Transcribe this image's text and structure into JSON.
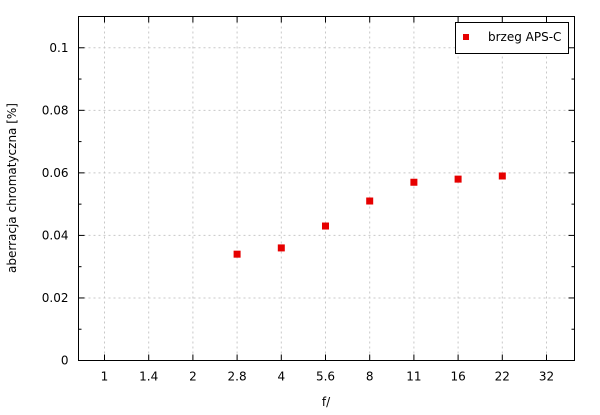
{
  "chart_data": {
    "type": "scatter",
    "title": "",
    "xlabel": "f/",
    "ylabel": "aberracja chromatyczna [%]",
    "x_scale": "categorical",
    "categories": [
      "1",
      "1.4",
      "2",
      "2.8",
      "4",
      "5.6",
      "8",
      "11",
      "16",
      "22",
      "32"
    ],
    "ylim": [
      0,
      0.11
    ],
    "y_ticks": [
      "0",
      "0.02",
      "0.04",
      "0.06",
      "0.08",
      "0.1"
    ],
    "y_tick_values": [
      0,
      0.02,
      0.04,
      0.06,
      0.08,
      0.1
    ],
    "y_minor_ticks": [
      0.01,
      0.03,
      0.05,
      0.07,
      0.09
    ],
    "grid": true,
    "legend_position": "top-right",
    "series": [
      {
        "name": "brzeg APS-C",
        "color": "#e60000",
        "marker": "square",
        "points": [
          {
            "x": "2.8",
            "y": 0.034
          },
          {
            "x": "4",
            "y": 0.036
          },
          {
            "x": "5.6",
            "y": 0.043
          },
          {
            "x": "8",
            "y": 0.051
          },
          {
            "x": "11",
            "y": 0.057
          },
          {
            "x": "16",
            "y": 0.058
          },
          {
            "x": "22",
            "y": 0.059
          }
        ]
      }
    ]
  }
}
